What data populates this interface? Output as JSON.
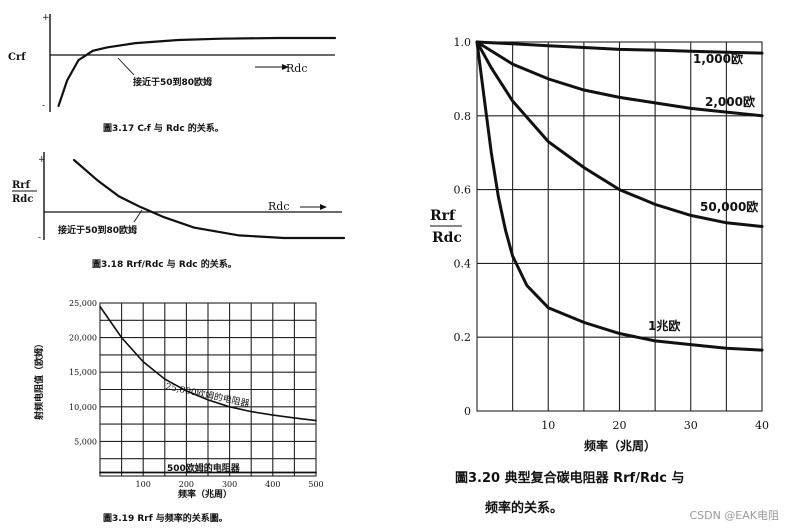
{
  "watermark": "CSDN @EAK电阻",
  "chart_data": [
    {
      "id": "fig317",
      "type": "line",
      "caption": "圖3.17  Cᵣf 与 Rdc 的关系。",
      "ylabel": "Crf",
      "xlabel": "Rdc",
      "tick_plus": "+",
      "tick_minus": "-",
      "annotation": "接近于50到80欧姆",
      "series": [
        {
          "x": [
            0.03,
            0.06,
            0.1,
            0.15,
            0.2,
            0.3,
            0.45,
            0.6,
            0.8,
            1.0
          ],
          "y": [
            -1.0,
            -0.5,
            -0.1,
            0.25,
            0.45,
            0.7,
            0.88,
            0.96,
            1.0,
            1.0
          ]
        }
      ]
    },
    {
      "id": "fig318",
      "type": "line",
      "caption": "圖3.18  Rrf/Rdc 与 Rdc 的关系。",
      "ylabel_top": "Rrf",
      "ylabel_bottom": "Rdc",
      "xlabel": "Rdc",
      "tick_plus": "+",
      "tick_minus": "-",
      "annotation": "接近于50到80欧姆",
      "series": [
        {
          "x": [
            0.1,
            0.18,
            0.25,
            0.32,
            0.4,
            0.5,
            0.65,
            0.8,
            1.0
          ],
          "y": [
            1.0,
            0.6,
            0.3,
            0.1,
            -0.1,
            -0.3,
            -0.45,
            -0.5,
            -0.5
          ]
        }
      ]
    },
    {
      "id": "fig319",
      "type": "line",
      "caption": "圖3.19  Rrf 与频率的关系圖。",
      "ylabel": "射频电阻值（欧姆）",
      "xlabel": "频率（兆周）",
      "xlim": [
        0,
        500
      ],
      "ylim": [
        0,
        25000
      ],
      "x_ticks": [
        "100",
        "200",
        "300",
        "400",
        "500"
      ],
      "y_ticks": [
        "5,000",
        "10,000",
        "15,000",
        "20,000",
        "25,000"
      ],
      "series": [
        {
          "name": "25,000欧姆的电阻器",
          "x": [
            0,
            50,
            100,
            150,
            200,
            250,
            300,
            350,
            400,
            450,
            500
          ],
          "y": [
            24500,
            20000,
            16500,
            14000,
            12300,
            11000,
            10000,
            9300,
            8800,
            8400,
            8000
          ]
        },
        {
          "name": "500欧姆的电阻器",
          "x": [
            0,
            100,
            200,
            300,
            400,
            500
          ],
          "y": [
            500,
            500,
            500,
            500,
            500,
            500
          ]
        }
      ]
    },
    {
      "id": "fig320",
      "type": "line",
      "caption_line1": "圖3.20  典型复合碳电阻器 Rrf/Rdc 与",
      "caption_line2": "频率的关系。",
      "ylabel_top": "Rrf",
      "ylabel_bottom": "Rdc",
      "xlabel": "频率（兆周）",
      "xlim": [
        0,
        40
      ],
      "ylim": [
        0,
        1.0
      ],
      "x_ticks": [
        "10",
        "20",
        "30",
        "40"
      ],
      "y_ticks": [
        "0",
        "0.2",
        "0.4",
        "0.6",
        "0.8",
        "1.0"
      ],
      "series": [
        {
          "name": "1,000欧",
          "x": [
            0,
            5,
            10,
            15,
            20,
            25,
            30,
            35,
            40
          ],
          "y": [
            1.0,
            0.995,
            0.99,
            0.985,
            0.98,
            0.978,
            0.975,
            0.972,
            0.97
          ]
        },
        {
          "name": "2,000欧",
          "x": [
            0,
            5,
            10,
            15,
            20,
            25,
            30,
            35,
            40
          ],
          "y": [
            1.0,
            0.94,
            0.9,
            0.87,
            0.85,
            0.835,
            0.82,
            0.81,
            0.8
          ]
        },
        {
          "name": "50,000欧",
          "x": [
            0,
            2,
            5,
            10,
            15,
            20,
            25,
            30,
            35,
            40
          ],
          "y": [
            1.0,
            0.93,
            0.84,
            0.73,
            0.66,
            0.6,
            0.56,
            0.53,
            0.51,
            0.5
          ]
        },
        {
          "name": "1兆欧",
          "x": [
            0,
            1,
            2,
            3,
            4,
            5,
            7,
            10,
            15,
            20,
            25,
            30,
            35,
            40
          ],
          "y": [
            1.0,
            0.85,
            0.7,
            0.58,
            0.49,
            0.42,
            0.34,
            0.28,
            0.24,
            0.21,
            0.19,
            0.18,
            0.17,
            0.165
          ]
        }
      ]
    }
  ]
}
